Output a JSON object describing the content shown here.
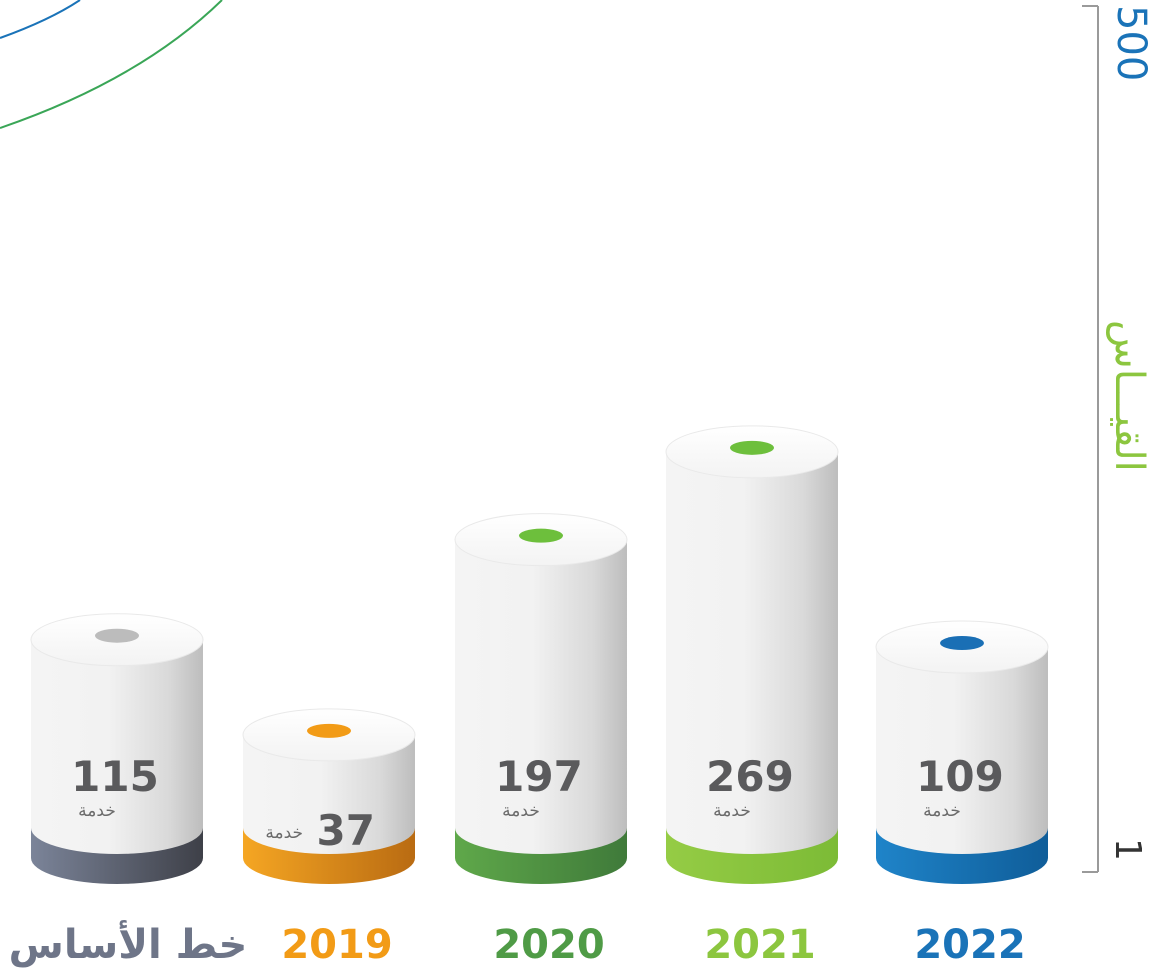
{
  "chart_data": {
    "type": "bar",
    "categories": [
      "خط الأساس",
      "2019",
      "2020",
      "2021",
      "2022"
    ],
    "values": [
      115,
      37,
      197,
      269,
      109
    ],
    "value_unit": "خدمة",
    "scale_label": "القيـــاس",
    "scale_max_label": "500",
    "scale_min_label": "1",
    "ylim": [
      1,
      500
    ],
    "colors": [
      "#6e7588",
      "#f29b16",
      "#4f9b46",
      "#8cc63f",
      "#1a73b8"
    ],
    "top_dot_colors": [
      "#bcbcbc",
      "#f29b16",
      "#6dbf3c",
      "#6dbf3c",
      "#1a6fb5"
    ],
    "label_colors": [
      "#6e7588",
      "#f29b16",
      "#4f9b46",
      "#8cc63f",
      "#1a73b8"
    ],
    "scale_colors": {
      "max": "#1a73b8",
      "label": "#8cc63f",
      "min": "#333333",
      "line": "#9a9a9a"
    }
  }
}
